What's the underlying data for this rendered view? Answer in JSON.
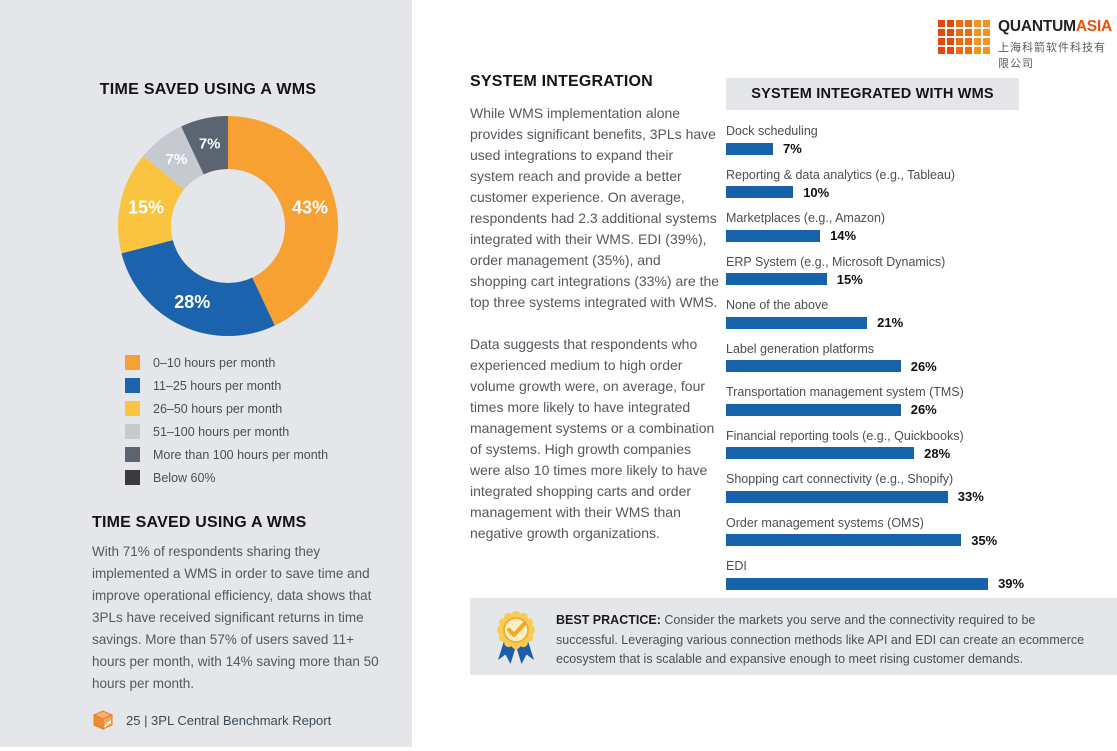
{
  "page": {
    "footer": {
      "page_label": "25 | 3PL Central Benchmark Report"
    }
  },
  "brand": {
    "name_primary": "QUANTUM",
    "name_secondary": "ASIA",
    "name_chinese": "上海科箭软件科技有限公司",
    "colors": {
      "orange": "#E8520E",
      "dark_text": "#232323",
      "square_shades": [
        "#E3470D",
        "#EE6B12",
        "#F5931D"
      ]
    }
  },
  "left_panel": {
    "section": {
      "heading": "TIME SAVED USING A WMS",
      "body": "With 71% of respondents sharing they implemented a WMS in order to save time and improve operational efficiency, data shows that 3PLs have received significant returns in time savings. More than 57% of users saved 11+ hours per month, with 14% saving more than 50 hours per month."
    }
  },
  "middle": {
    "heading": "SYSTEM INTEGRATION",
    "paragraph1": "While WMS implementation alone provides significant benefits, 3PLs have used integrations to expand their system reach and provide a better customer experience. On average, respondents had 2.3 additional systems integrated with their WMS. EDI (39%), order management (35%), and shopping cart integrations (33%) are the top three systems integrated with WMS.",
    "paragraph2": "Data suggests that respondents who experienced medium to high order volume growth were, on average, four times more likely to have integrated management systems or a combination of systems. High growth companies were also 10 times more likely to have integrated shopping carts and order management with their WMS than negative growth organizations."
  },
  "best_practice": {
    "label": "BEST PRACTICE:",
    "text": " Consider the markets you serve and the connectivity required to be successful. Leveraging various connection methods like API and EDI can create an ecommerce ecosystem that is scalable and expansive enough to meet rising customer demands."
  },
  "chart_data": [
    {
      "type": "pie",
      "subtype": "donut",
      "title": "TIME SAVED USING A WMS",
      "legend_position": "bottom-left",
      "segments": [
        {
          "label": "0–10 hours per month",
          "value": 43,
          "data_label": "43%",
          "color": "#F7A133"
        },
        {
          "label": "11–25 hours per month",
          "value": 28,
          "data_label": "28%",
          "color": "#1B64AD"
        },
        {
          "label": "26–50 hours per month",
          "value": 15,
          "data_label": "15%",
          "color": "#FBC440"
        },
        {
          "label": "51–100 hours per month",
          "value": 7,
          "data_label": "7%",
          "color": "#C5CAD1"
        },
        {
          "label": "More than 100 hours per month",
          "value": 7,
          "data_label": "7%",
          "color": "#5A6472"
        }
      ],
      "legend_extra": [
        {
          "label": "Below 60%",
          "color": "#3B3B3B"
        }
      ]
    },
    {
      "type": "bar",
      "orientation": "horizontal",
      "title": "SYSTEM INTEGRATED WITH WMS",
      "bar_color": "#1663AC",
      "xlim": [
        0,
        43
      ],
      "categories": [
        "Dock scheduling",
        "Reporting & data analytics (e.g., Tableau)",
        "Marketplaces (e.g., Amazon)",
        "ERP System (e.g., Microsoft Dynamics)",
        "None of the above",
        "Label generation platforms",
        "Transportation management system (TMS)",
        "Financial reporting tools (e.g., Quickbooks)",
        "Shopping cart connectivity (e.g., Shopify)",
        "Order management systems (OMS)",
        "EDI"
      ],
      "values": [
        7,
        10,
        14,
        15,
        21,
        26,
        26,
        28,
        33,
        35,
        39
      ],
      "value_labels": [
        "7%",
        "10%",
        "14%",
        "15%",
        "21%",
        "26%",
        "26%",
        "28%",
        "33%",
        "35%",
        "39%"
      ]
    }
  ]
}
